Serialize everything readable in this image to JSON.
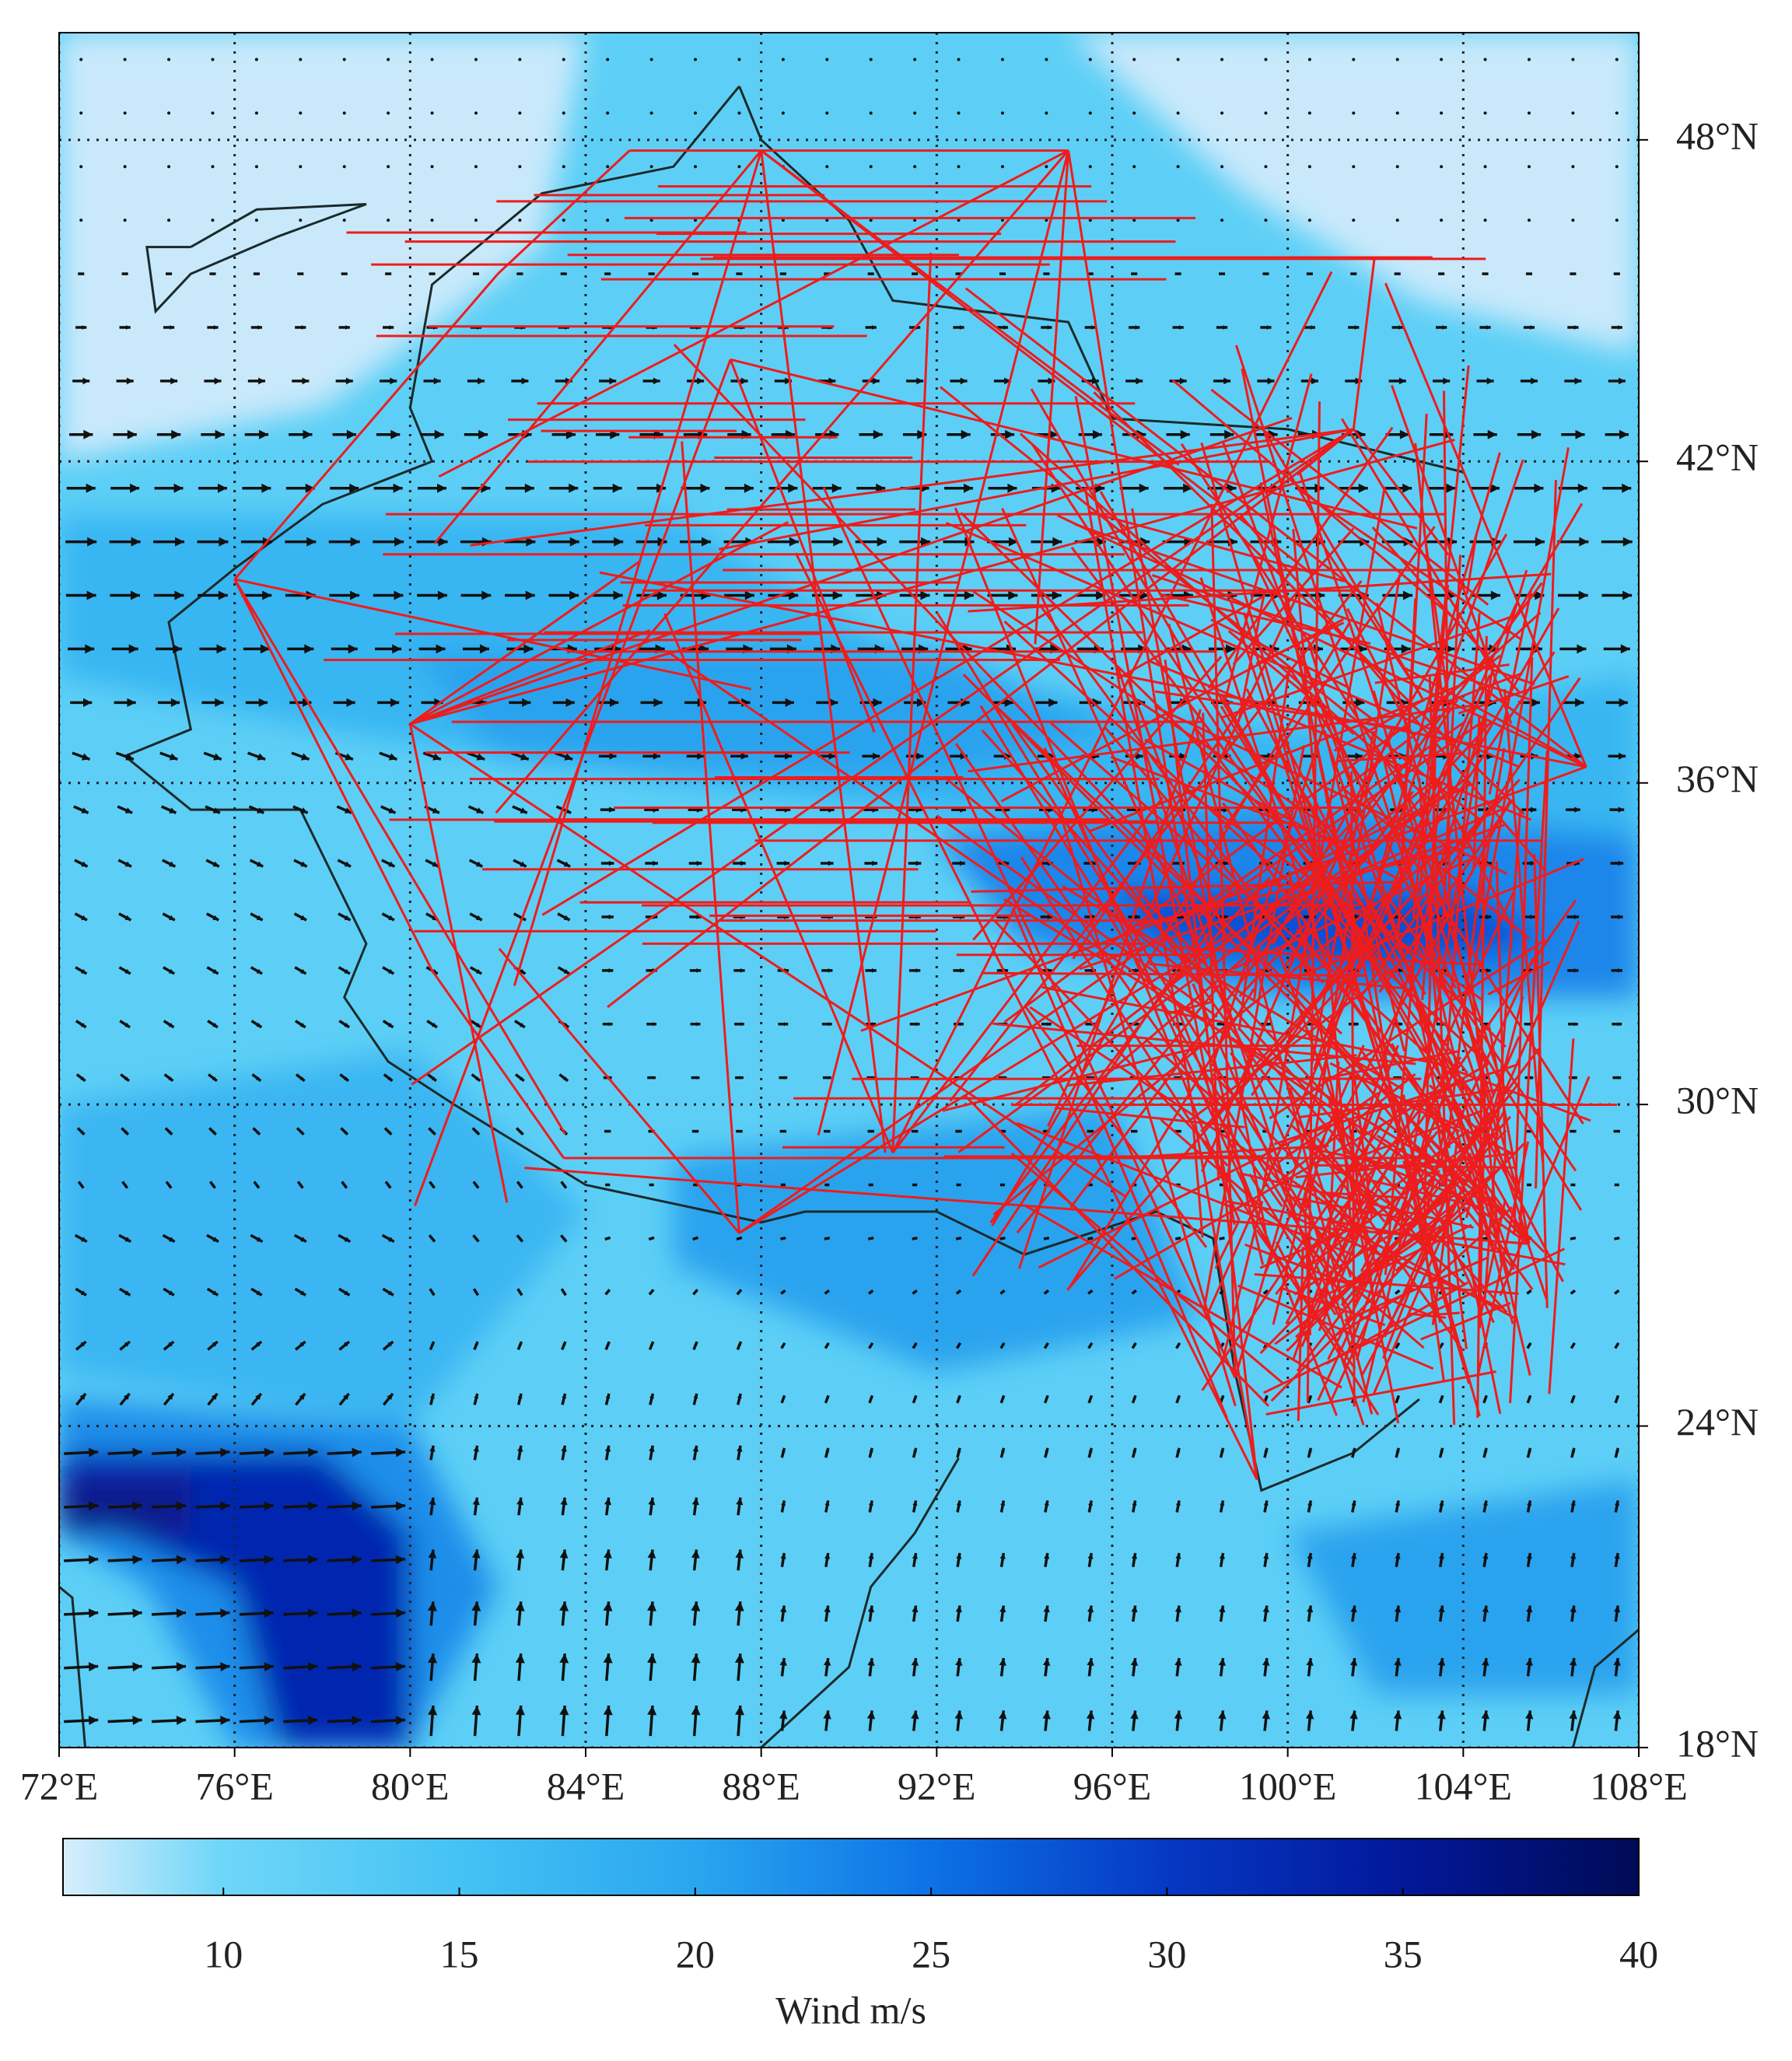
{
  "map": {
    "xlim": [
      72,
      108
    ],
    "ylim": [
      18,
      50
    ],
    "xticks": [
      {
        "value": 72,
        "label": "72°E"
      },
      {
        "value": 76,
        "label": "76°E"
      },
      {
        "value": 80,
        "label": "80°E"
      },
      {
        "value": 84,
        "label": "84°E"
      },
      {
        "value": 88,
        "label": "88°E"
      },
      {
        "value": 92,
        "label": "92°E"
      },
      {
        "value": 96,
        "label": "96°E"
      },
      {
        "value": 100,
        "label": "100°E"
      },
      {
        "value": 104,
        "label": "104°E"
      },
      {
        "value": 108,
        "label": "108°E"
      }
    ],
    "yticks": [
      {
        "value": 18,
        "label": "18°N"
      },
      {
        "value": 24,
        "label": "24°N"
      },
      {
        "value": 30,
        "label": "30°N"
      },
      {
        "value": 36,
        "label": "36°N"
      },
      {
        "value": 42,
        "label": "42°N"
      },
      {
        "value": 48,
        "label": "48°N"
      }
    ],
    "grid": true,
    "colorbar": {
      "label": "Wind m/s",
      "lim": [
        6.6,
        40
      ],
      "ticks": [
        10,
        15,
        20,
        25,
        30,
        35,
        40
      ]
    }
  }
}
